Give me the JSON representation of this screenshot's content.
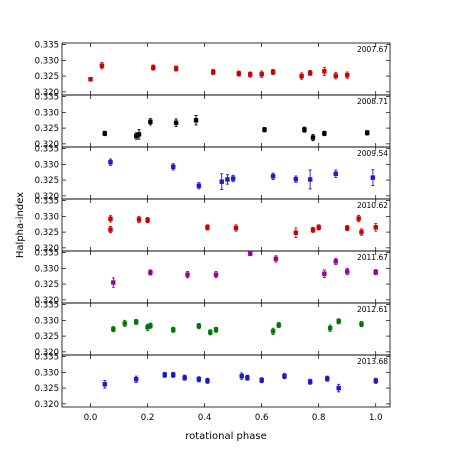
{
  "chart_data": {
    "type": "scatter",
    "xlabel": "rotational phase",
    "ylabel": "Halpha-index",
    "xlim": [
      -0.1,
      1.05
    ],
    "ylim": [
      0.319,
      0.3355
    ],
    "x_ticks": [
      "0.0",
      "0.2",
      "0.4",
      "0.6",
      "0.8",
      "1.0"
    ],
    "x_tick_values": [
      0.0,
      0.2,
      0.4,
      0.6,
      0.8,
      1.0
    ],
    "y_ticks": [
      "0.320",
      "0.325",
      "0.330",
      "0.335"
    ],
    "y_tick_values": [
      0.32,
      0.325,
      0.33,
      0.335
    ],
    "grid": false,
    "series": [
      {
        "name": "2007.67",
        "color": "#cc0000",
        "points": [
          {
            "x": 0.0,
            "y": 0.324,
            "err": 0.0005
          },
          {
            "x": 0.04,
            "y": 0.3283,
            "err": 0.001
          },
          {
            "x": 0.22,
            "y": 0.3277,
            "err": 0.0008
          },
          {
            "x": 0.3,
            "y": 0.3274,
            "err": 0.0008
          },
          {
            "x": 0.43,
            "y": 0.3263,
            "err": 0.0008
          },
          {
            "x": 0.52,
            "y": 0.3258,
            "err": 0.0008
          },
          {
            "x": 0.56,
            "y": 0.3255,
            "err": 0.0008
          },
          {
            "x": 0.6,
            "y": 0.3256,
            "err": 0.001
          },
          {
            "x": 0.64,
            "y": 0.3263,
            "err": 0.0008
          },
          {
            "x": 0.74,
            "y": 0.325,
            "err": 0.001
          },
          {
            "x": 0.77,
            "y": 0.326,
            "err": 0.0008
          },
          {
            "x": 0.82,
            "y": 0.3265,
            "err": 0.0013
          },
          {
            "x": 0.86,
            "y": 0.3251,
            "err": 0.001
          },
          {
            "x": 0.9,
            "y": 0.3253,
            "err": 0.001
          }
        ]
      },
      {
        "name": "2008.71",
        "color": "#000000",
        "points": [
          {
            "x": 0.05,
            "y": 0.3233,
            "err": 0.0007
          },
          {
            "x": 0.16,
            "y": 0.3225,
            "err": 0.001
          },
          {
            "x": 0.17,
            "y": 0.323,
            "err": 0.0015
          },
          {
            "x": 0.21,
            "y": 0.327,
            "err": 0.001
          },
          {
            "x": 0.3,
            "y": 0.3267,
            "err": 0.0012
          },
          {
            "x": 0.37,
            "y": 0.3275,
            "err": 0.0015
          },
          {
            "x": 0.61,
            "y": 0.3245,
            "err": 0.0007
          },
          {
            "x": 0.75,
            "y": 0.3245,
            "err": 0.0008
          },
          {
            "x": 0.78,
            "y": 0.322,
            "err": 0.001
          },
          {
            "x": 0.82,
            "y": 0.3233,
            "err": 0.0007
          },
          {
            "x": 0.97,
            "y": 0.3235,
            "err": 0.0007
          }
        ]
      },
      {
        "name": "2009.54",
        "color": "#1a1acc",
        "points": [
          {
            "x": 0.07,
            "y": 0.3307,
            "err": 0.001
          },
          {
            "x": 0.29,
            "y": 0.3292,
            "err": 0.001
          },
          {
            "x": 0.38,
            "y": 0.3232,
            "err": 0.001
          },
          {
            "x": 0.46,
            "y": 0.3245,
            "err": 0.0025
          },
          {
            "x": 0.48,
            "y": 0.3252,
            "err": 0.0015
          },
          {
            "x": 0.5,
            "y": 0.3255,
            "err": 0.001
          },
          {
            "x": 0.64,
            "y": 0.3262,
            "err": 0.001
          },
          {
            "x": 0.72,
            "y": 0.3253,
            "err": 0.001
          },
          {
            "x": 0.77,
            "y": 0.3252,
            "err": 0.003
          },
          {
            "x": 0.86,
            "y": 0.327,
            "err": 0.0012
          },
          {
            "x": 0.99,
            "y": 0.3258,
            "err": 0.0025
          }
        ]
      },
      {
        "name": "2010.62",
        "color": "#cc0000",
        "points": [
          {
            "x": 0.07,
            "y": 0.3292,
            "err": 0.001
          },
          {
            "x": 0.07,
            "y": 0.3258,
            "err": 0.001
          },
          {
            "x": 0.17,
            "y": 0.329,
            "err": 0.001
          },
          {
            "x": 0.2,
            "y": 0.3288,
            "err": 0.0008
          },
          {
            "x": 0.41,
            "y": 0.3265,
            "err": 0.0008
          },
          {
            "x": 0.51,
            "y": 0.3263,
            "err": 0.001
          },
          {
            "x": 0.72,
            "y": 0.3248,
            "err": 0.0015
          },
          {
            "x": 0.78,
            "y": 0.3257,
            "err": 0.0008
          },
          {
            "x": 0.8,
            "y": 0.3265,
            "err": 0.0008
          },
          {
            "x": 0.9,
            "y": 0.3263,
            "err": 0.0008
          },
          {
            "x": 0.94,
            "y": 0.3293,
            "err": 0.001
          },
          {
            "x": 0.95,
            "y": 0.325,
            "err": 0.001
          },
          {
            "x": 1.0,
            "y": 0.3265,
            "err": 0.0012
          }
        ]
      },
      {
        "name": "2011.67",
        "color": "#990099",
        "points": [
          {
            "x": 0.08,
            "y": 0.3255,
            "err": 0.0015
          },
          {
            "x": 0.21,
            "y": 0.3287,
            "err": 0.0008
          },
          {
            "x": 0.34,
            "y": 0.328,
            "err": 0.001
          },
          {
            "x": 0.44,
            "y": 0.328,
            "err": 0.001
          },
          {
            "x": 0.56,
            "y": 0.3347,
            "err": 0.0007
          },
          {
            "x": 0.65,
            "y": 0.333,
            "err": 0.001
          },
          {
            "x": 0.82,
            "y": 0.3283,
            "err": 0.0012
          },
          {
            "x": 0.86,
            "y": 0.3322,
            "err": 0.001
          },
          {
            "x": 0.9,
            "y": 0.329,
            "err": 0.001
          },
          {
            "x": 1.0,
            "y": 0.3288,
            "err": 0.0008
          }
        ]
      },
      {
        "name": "2012.61",
        "color": "#007700",
        "points": [
          {
            "x": 0.08,
            "y": 0.3272,
            "err": 0.0008
          },
          {
            "x": 0.12,
            "y": 0.329,
            "err": 0.001
          },
          {
            "x": 0.16,
            "y": 0.3295,
            "err": 0.0008
          },
          {
            "x": 0.2,
            "y": 0.3278,
            "err": 0.001
          },
          {
            "x": 0.21,
            "y": 0.3283,
            "err": 0.0008
          },
          {
            "x": 0.29,
            "y": 0.327,
            "err": 0.0008
          },
          {
            "x": 0.38,
            "y": 0.3282,
            "err": 0.0008
          },
          {
            "x": 0.42,
            "y": 0.3262,
            "err": 0.0008
          },
          {
            "x": 0.44,
            "y": 0.327,
            "err": 0.0008
          },
          {
            "x": 0.64,
            "y": 0.3265,
            "err": 0.001
          },
          {
            "x": 0.66,
            "y": 0.3285,
            "err": 0.0008
          },
          {
            "x": 0.84,
            "y": 0.3275,
            "err": 0.001
          },
          {
            "x": 0.87,
            "y": 0.3297,
            "err": 0.0008
          },
          {
            "x": 0.95,
            "y": 0.3288,
            "err": 0.0008
          }
        ]
      },
      {
        "name": "2013.68",
        "color": "#1a1acc",
        "points": [
          {
            "x": 0.05,
            "y": 0.3262,
            "err": 0.0012
          },
          {
            "x": 0.16,
            "y": 0.3278,
            "err": 0.001
          },
          {
            "x": 0.26,
            "y": 0.3292,
            "err": 0.0008
          },
          {
            "x": 0.29,
            "y": 0.3292,
            "err": 0.0008
          },
          {
            "x": 0.33,
            "y": 0.3283,
            "err": 0.0008
          },
          {
            "x": 0.38,
            "y": 0.3278,
            "err": 0.0008
          },
          {
            "x": 0.41,
            "y": 0.3273,
            "err": 0.0008
          },
          {
            "x": 0.53,
            "y": 0.3288,
            "err": 0.001
          },
          {
            "x": 0.55,
            "y": 0.3283,
            "err": 0.0008
          },
          {
            "x": 0.6,
            "y": 0.3275,
            "err": 0.0008
          },
          {
            "x": 0.68,
            "y": 0.3288,
            "err": 0.0008
          },
          {
            "x": 0.77,
            "y": 0.327,
            "err": 0.0008
          },
          {
            "x": 0.83,
            "y": 0.328,
            "err": 0.0008
          },
          {
            "x": 0.87,
            "y": 0.325,
            "err": 0.0012
          },
          {
            "x": 1.0,
            "y": 0.3273,
            "err": 0.0008
          }
        ]
      }
    ]
  }
}
